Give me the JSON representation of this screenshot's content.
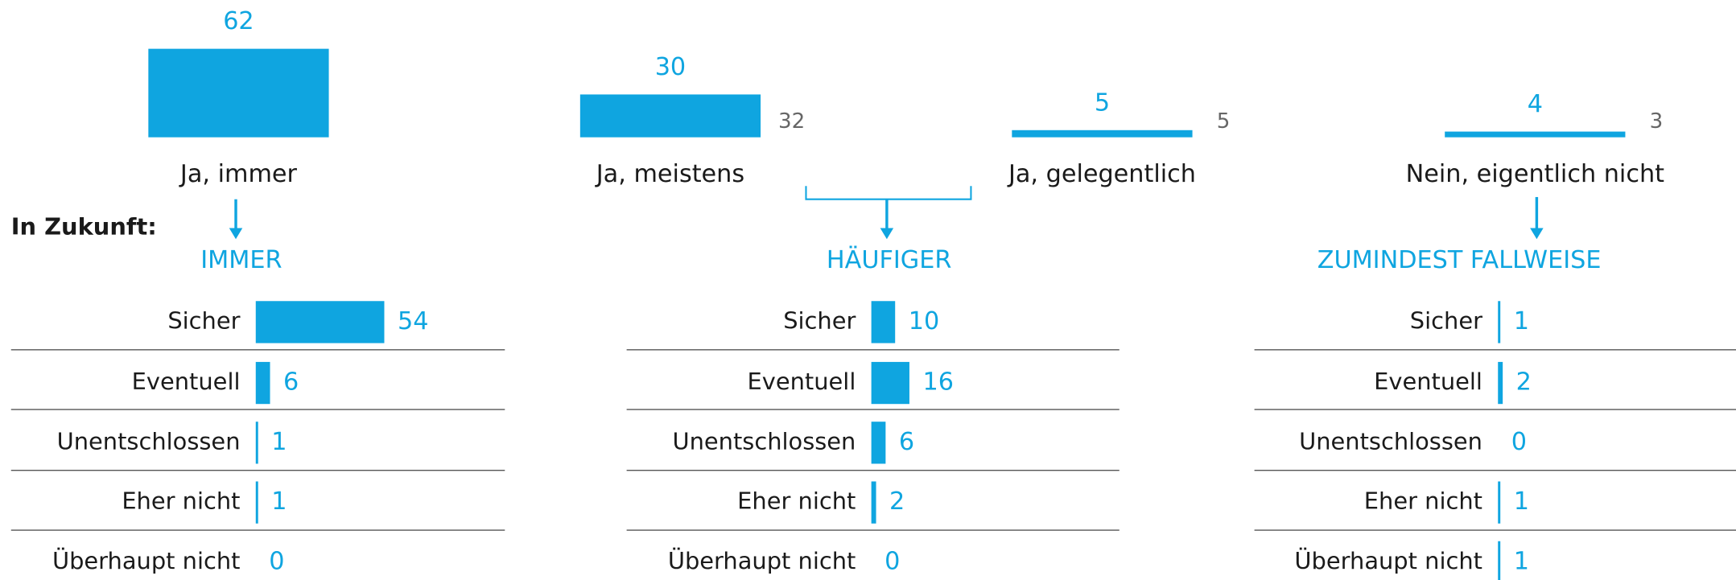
{
  "chart_data": [
    {
      "type": "bar",
      "annotation": "In Zukunft:",
      "categories": [
        "Ja, immer",
        "Ja, meistens",
        "Ja, gelegentlich",
        "Nein, eigentlich nicht"
      ],
      "values": [
        62,
        30,
        5,
        4
      ],
      "secondary_values": [
        null,
        32,
        5,
        3
      ],
      "color": "#0fa5e0",
      "secondary_color": "#666666"
    },
    {
      "type": "hbar",
      "title": "IMMER",
      "categories": [
        "Sicher",
        "Eventuell",
        "Unentschlossen",
        "Eher nicht",
        "Überhaupt nicht"
      ],
      "values": [
        54,
        6,
        1,
        1,
        0
      ],
      "color": "#0fa5e0"
    },
    {
      "type": "hbar",
      "title": "HÄUFIGER",
      "categories": [
        "Sicher",
        "Eventuell",
        "Unentschlossen",
        "Eher nicht",
        "Überhaupt nicht"
      ],
      "values": [
        10,
        16,
        6,
        2,
        0
      ],
      "color": "#0fa5e0"
    },
    {
      "type": "hbar",
      "title": "ZUMINDEST FALLWEISE",
      "categories": [
        "Sicher",
        "Eventuell",
        "Unentschlossen",
        "Eher nicht",
        "Überhaupt nicht"
      ],
      "values": [
        1,
        2,
        0,
        1,
        1
      ],
      "color": "#0fa5e0"
    }
  ]
}
